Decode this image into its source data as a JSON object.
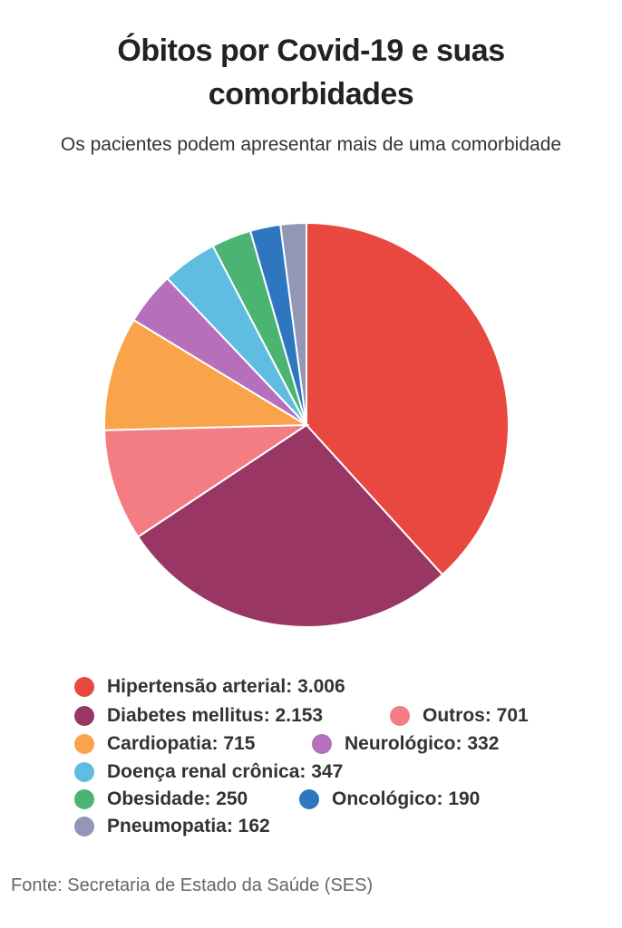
{
  "title": "Óbitos por Covid-19 e suas comorbidades",
  "title_line1": "Óbitos por Covid-19 e suas",
  "title_line2": "comorbidades",
  "subtitle": "Os pacientes podem apresentar mais de uma comorbidade",
  "source": "Fonte: Secretaria de Estado da Saúde (SES)",
  "chart_data": {
    "type": "pie",
    "title": "Óbitos por Covid-19 e suas comorbidades",
    "subtitle": "Os pacientes podem apresentar mais de uma comorbidade",
    "slices": [
      {
        "label": "Hipertensão arterial",
        "value": 3006,
        "display": "3.006",
        "color": "#e8483f"
      },
      {
        "label": "Diabetes mellitus",
        "value": 2153,
        "display": "2.153",
        "color": "#993664"
      },
      {
        "label": "Outros",
        "value": 701,
        "display": "701",
        "color": "#f47c83"
      },
      {
        "label": "Cardiopatia",
        "value": 715,
        "display": "715",
        "color": "#f9a34a"
      },
      {
        "label": "Neurológico",
        "value": 332,
        "display": "332",
        "color": "#b56fbb"
      },
      {
        "label": "Doença renal crônica",
        "value": 347,
        "display": "347",
        "color": "#60bde2"
      },
      {
        "label": "Obesidade",
        "value": 250,
        "display": "250",
        "color": "#4cb473"
      },
      {
        "label": "Oncológico",
        "value": 190,
        "display": "190",
        "color": "#2f76c1"
      },
      {
        "label": "Pneumopatia",
        "value": 162,
        "display": "162",
        "color": "#9297b5"
      }
    ],
    "legend": {
      "entries": [
        {
          "text": "Hipertensão arterial: 3.006",
          "color": "#e8483f"
        },
        {
          "text": "Diabetes mellitus: 2.153",
          "color": "#993664"
        },
        {
          "text": "Outros: 701",
          "color": "#f47c83"
        },
        {
          "text": "Cardiopatia: 715",
          "color": "#f9a34a"
        },
        {
          "text": "Neurológico: 332",
          "color": "#b56fbb"
        },
        {
          "text": "Doença renal crônica: 347",
          "color": "#60bde2"
        },
        {
          "text": "Obesidade: 250",
          "color": "#4cb473"
        },
        {
          "text": "Oncológico: 190",
          "color": "#2f76c1"
        },
        {
          "text": "Pneumopatia: 162",
          "color": "#9297b5"
        }
      ],
      "placement": "bottom"
    }
  }
}
